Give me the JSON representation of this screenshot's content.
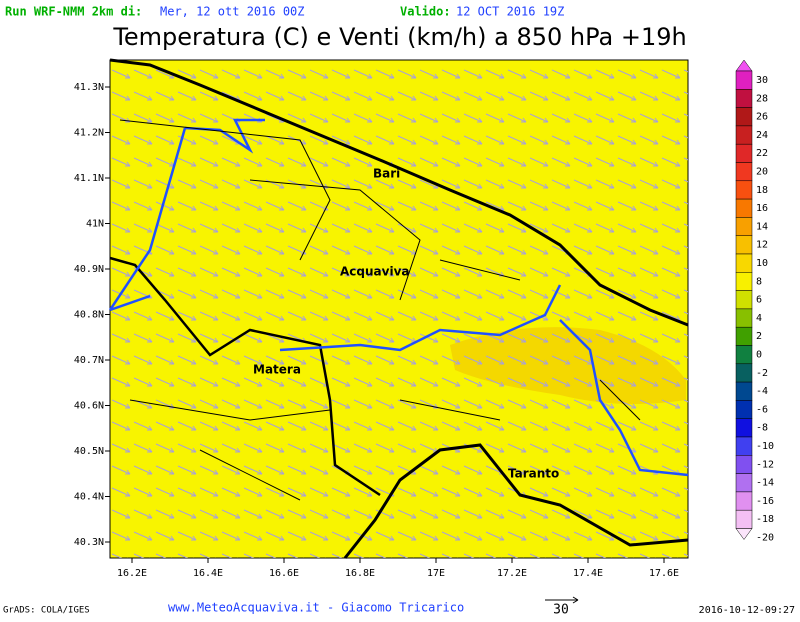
{
  "header": {
    "run_label": "Run WRF-NMM 2km di:",
    "run_date": "Mer, 12 ott 2016 00Z",
    "valid_label": "Valido:",
    "valid_date": "12 OCT 2016 19Z",
    "title": "Temperatura (C) e Venti (km/h) a 850 hPa +19h"
  },
  "map": {
    "lat_ticks": [
      "41.3N",
      "41.2N",
      "41.1N",
      "41N",
      "40.9N",
      "40.8N",
      "40.7N",
      "40.6N",
      "40.5N",
      "40.4N",
      "40.3N"
    ],
    "lon_ticks": [
      "16.2E",
      "16.4E",
      "16.6E",
      "16.8E",
      "17E",
      "17.2E",
      "17.4E",
      "17.6E"
    ],
    "cities": [
      "Bari",
      "Acquaviva",
      "Matera",
      "Taranto"
    ]
  },
  "colorbar": {
    "labels": [
      "30",
      "28",
      "26",
      "24",
      "22",
      "20",
      "18",
      "16",
      "14",
      "12",
      "10",
      "8",
      "6",
      "4",
      "2",
      "0",
      "-2",
      "-4",
      "-6",
      "-8",
      "-10",
      "-12",
      "-14",
      "-16",
      "-18",
      "-20"
    ],
    "colors": [
      "#f050f0",
      "#e020c0",
      "#c01040",
      "#b01818",
      "#c82020",
      "#e02828",
      "#f03820",
      "#f85010",
      "#f87800",
      "#f8a000",
      "#f8c000",
      "#f8d800",
      "#f8f000",
      "#d0e000",
      "#88c000",
      "#40a000",
      "#108040",
      "#086060",
      "#004890",
      "#0030b0",
      "#1010e0",
      "#4040f0",
      "#8050f0",
      "#b070f0",
      "#e090f0",
      "#f4c0f4",
      "#fbe4fb"
    ]
  },
  "footer": {
    "software": "GrADS: COLA/IGES",
    "credit": "www.MeteoAcquaviva.it - Giacomo Tricarico",
    "wind_scale": "30",
    "timestamp": "2016-10-12-09:27"
  }
}
